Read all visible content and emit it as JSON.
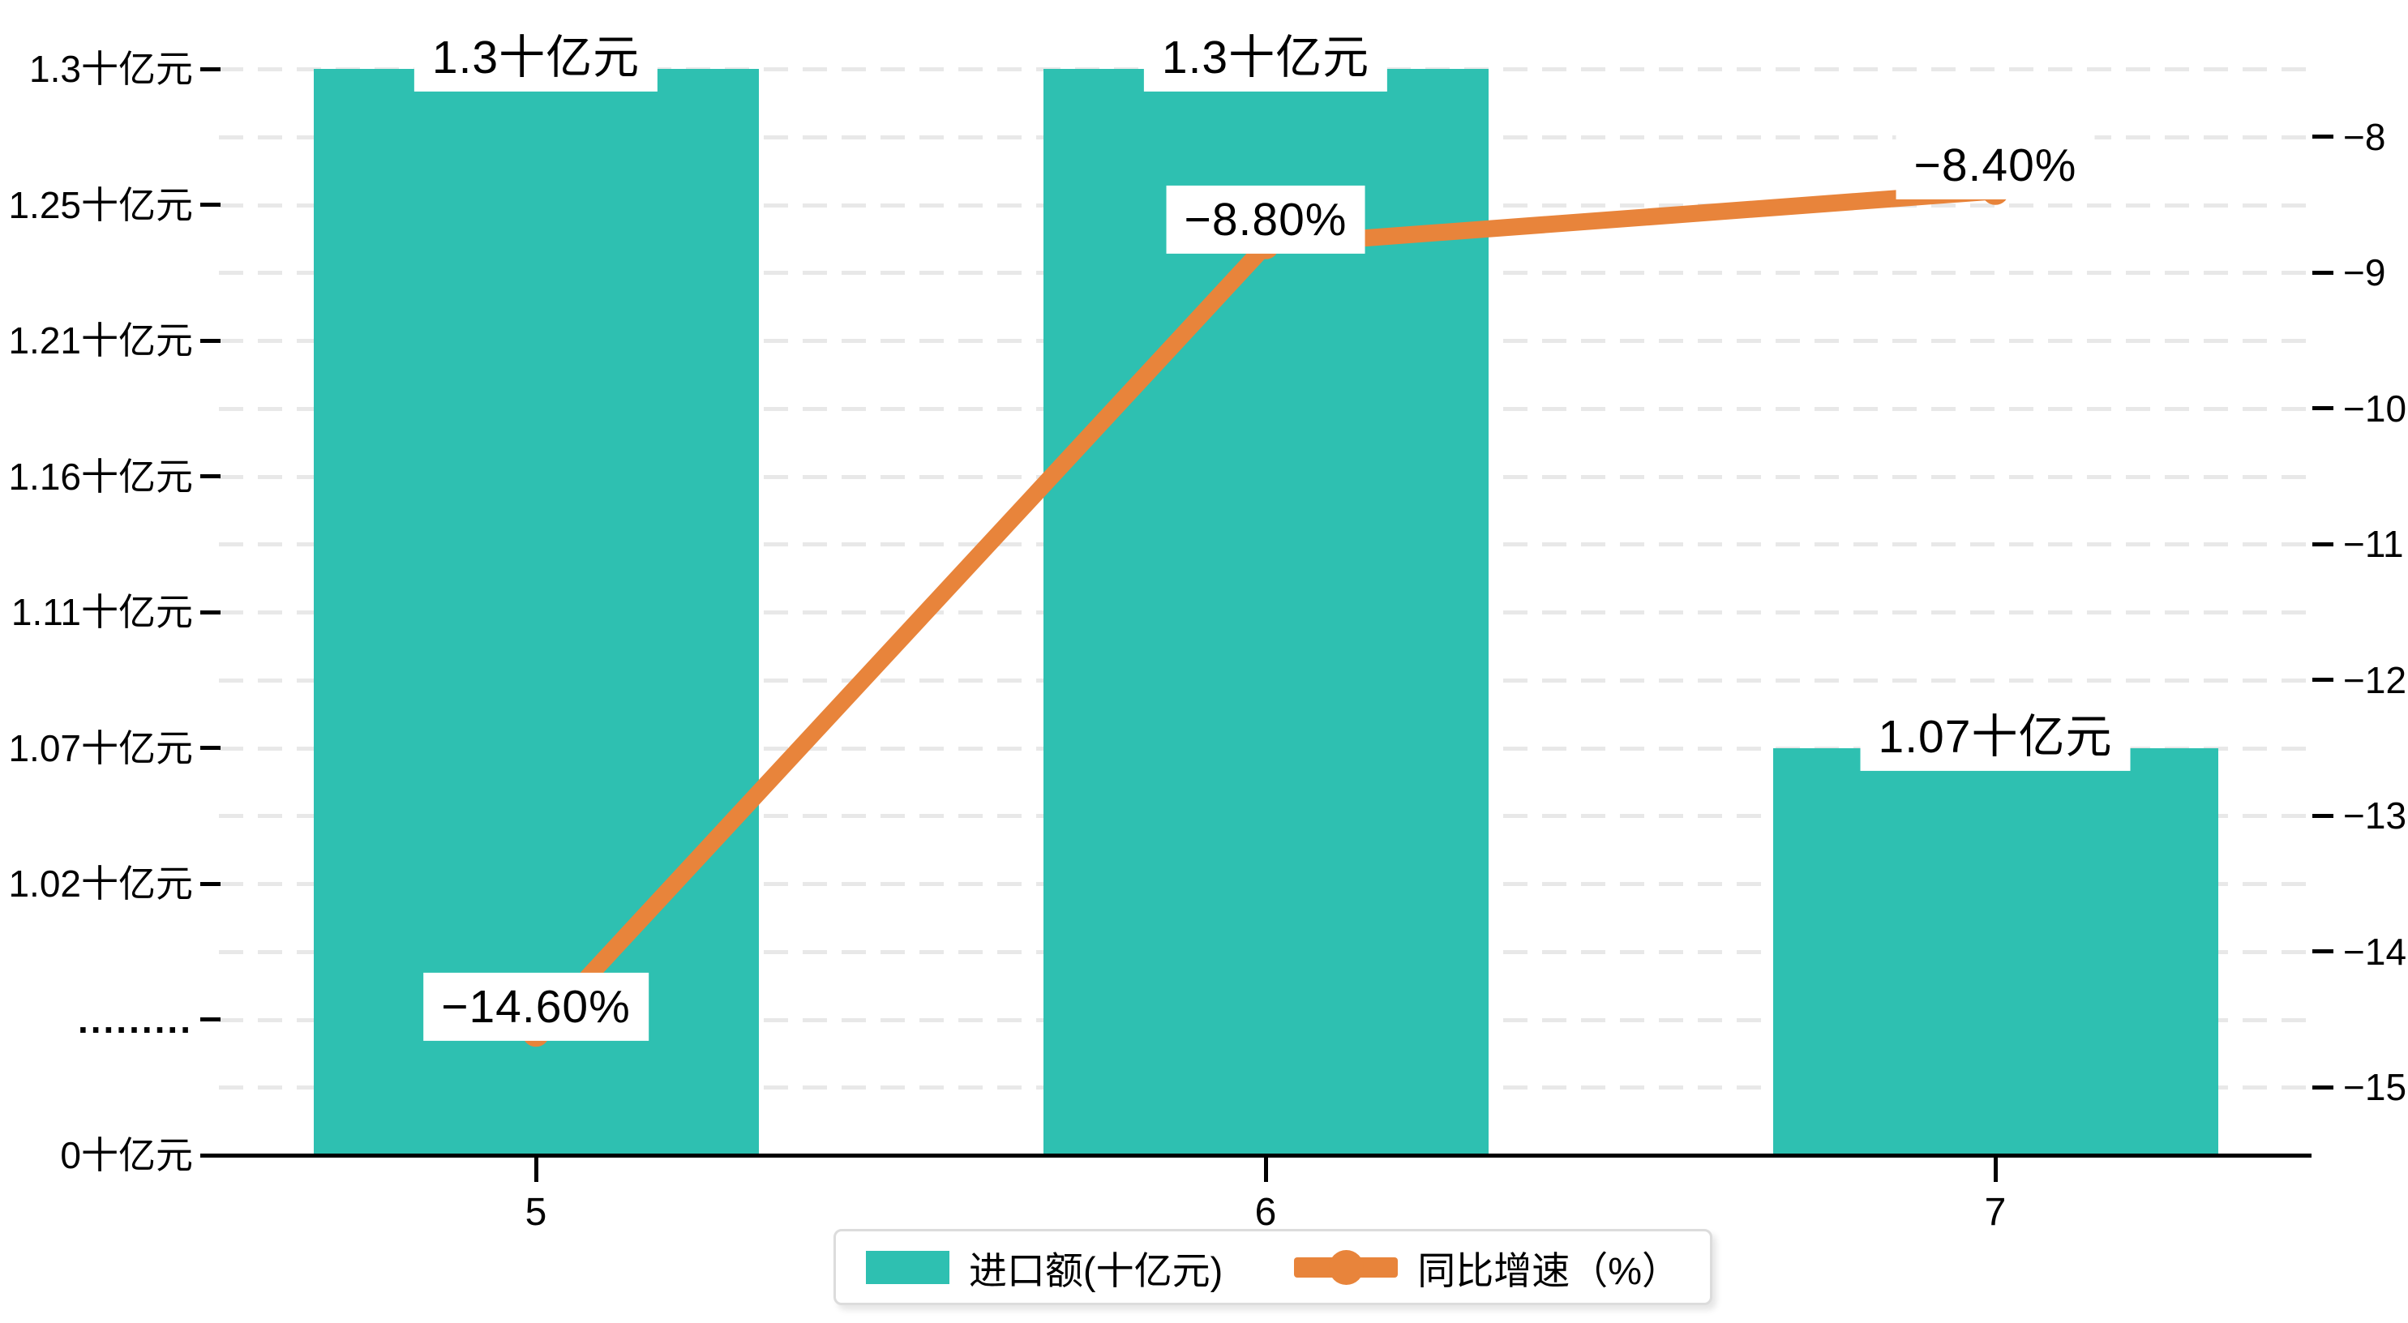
{
  "chart_data": {
    "type": "bar",
    "categories": [
      "5",
      "6",
      "7"
    ],
    "series": [
      {
        "name": "进口额(十亿元)",
        "type": "bar",
        "axis": "left",
        "values": [
          1.3,
          1.3,
          1.07
        ],
        "labels": [
          "1.3十亿元",
          "1.3十亿元",
          "1.07十亿元"
        ],
        "color": "#2EC0B1"
      },
      {
        "name": "同比增速（%）",
        "type": "line",
        "axis": "right",
        "values": [
          -14.6,
          -8.8,
          -8.4
        ],
        "labels": [
          "−14.60%",
          "−8.80%",
          "−8.40%"
        ],
        "color": "#E8843B"
      }
    ],
    "title": "",
    "xlabel": "",
    "ylabel_left": "十亿元",
    "ylabel_right": "%",
    "left_axis": {
      "tick_labels": [
        "1.3十亿元",
        "1.25十亿元",
        "1.21十亿元",
        "1.16十亿元",
        "1.11十亿元",
        "1.07十亿元",
        "1.02十亿元",
        ".........",
        "0十亿元"
      ],
      "broken_axis": true
    },
    "right_axis": {
      "tick_labels": [
        "−8",
        "−9",
        "−10",
        "−11",
        "−12",
        "−13",
        "−14",
        "−15"
      ],
      "range": [
        -15,
        -8
      ]
    },
    "grid": "horizontal-dashed",
    "legend_position": "bottom-center"
  },
  "legend": {
    "items": [
      {
        "label": "进口额(十亿元)",
        "color": "#2EC0B1",
        "marker": "square"
      },
      {
        "label": "同比增速（%）",
        "color": "#E8843B",
        "marker": "line-circle"
      }
    ]
  },
  "colors": {
    "bar": "#2EC0B1",
    "line": "#E8843B",
    "grid": "#E8E8E8",
    "axis": "#000000",
    "label_background": "#FFFFFF"
  }
}
